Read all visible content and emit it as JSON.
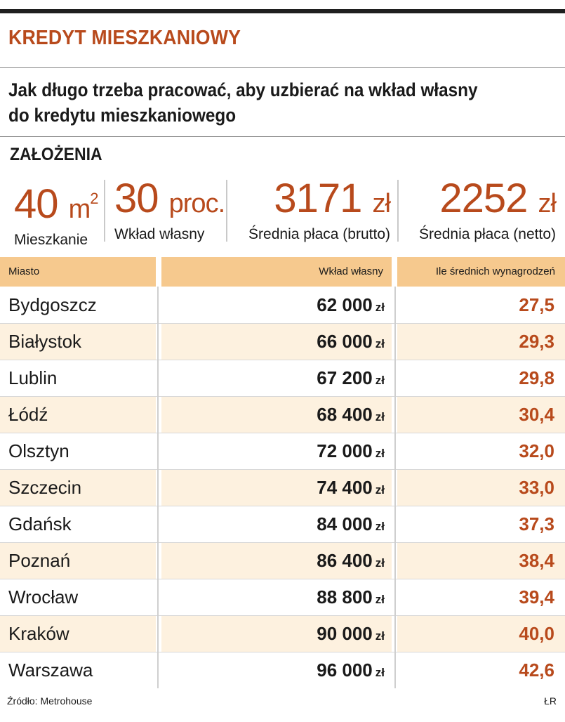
{
  "kicker": "KREDYT MIESZKANIOWY",
  "headline_line1": "Jak długo trzeba pracować, aby uzbierać na wkład własny",
  "headline_line2": "do kredytu mieszkaniowego",
  "assumptions": {
    "title": "ZAŁOŻENIA",
    "items": [
      {
        "value": "40",
        "unit": "m",
        "sup": "2",
        "label": "Mieszkanie"
      },
      {
        "value": "30",
        "unit": "proc.",
        "label": "Wkład własny"
      },
      {
        "value": "3171",
        "unit": "zł",
        "label": "Średnia płaca (brutto)"
      },
      {
        "value": "2252",
        "unit": "zł",
        "label": "Średnia płaca (netto)"
      }
    ]
  },
  "colors": {
    "accent": "#b84a1c",
    "header_bg": "#f6c98e",
    "alt_row_bg": "#fdf1df"
  },
  "chart_data": {
    "type": "table",
    "columns": [
      "Miasto",
      "Wkład własny",
      "Ile średnich wynagrodzeń"
    ],
    "currency": "zł",
    "rows": [
      {
        "city": "Bydgoszcz",
        "amount": "62 000",
        "ratio": "27,5"
      },
      {
        "city": "Białystok",
        "amount": "66 000",
        "ratio": "29,3"
      },
      {
        "city": "Lublin",
        "amount": "67 200",
        "ratio": "29,8"
      },
      {
        "city": "Łódź",
        "amount": "68 400",
        "ratio": "30,4"
      },
      {
        "city": "Olsztyn",
        "amount": "72 000",
        "ratio": "32,0"
      },
      {
        "city": "Szczecin",
        "amount": "74 400",
        "ratio": "33,0"
      },
      {
        "city": "Gdańsk",
        "amount": "84 000",
        "ratio": "37,3"
      },
      {
        "city": "Poznań",
        "amount": "86 400",
        "ratio": "38,4"
      },
      {
        "city": "Wrocław",
        "amount": "88 800",
        "ratio": "39,4"
      },
      {
        "city": "Kraków",
        "amount": "90 000",
        "ratio": "40,0"
      },
      {
        "city": "Warszawa",
        "amount": "96 000",
        "ratio": "42,6"
      }
    ]
  },
  "source": "Źródło: Metrohouse",
  "credit": "ŁR"
}
